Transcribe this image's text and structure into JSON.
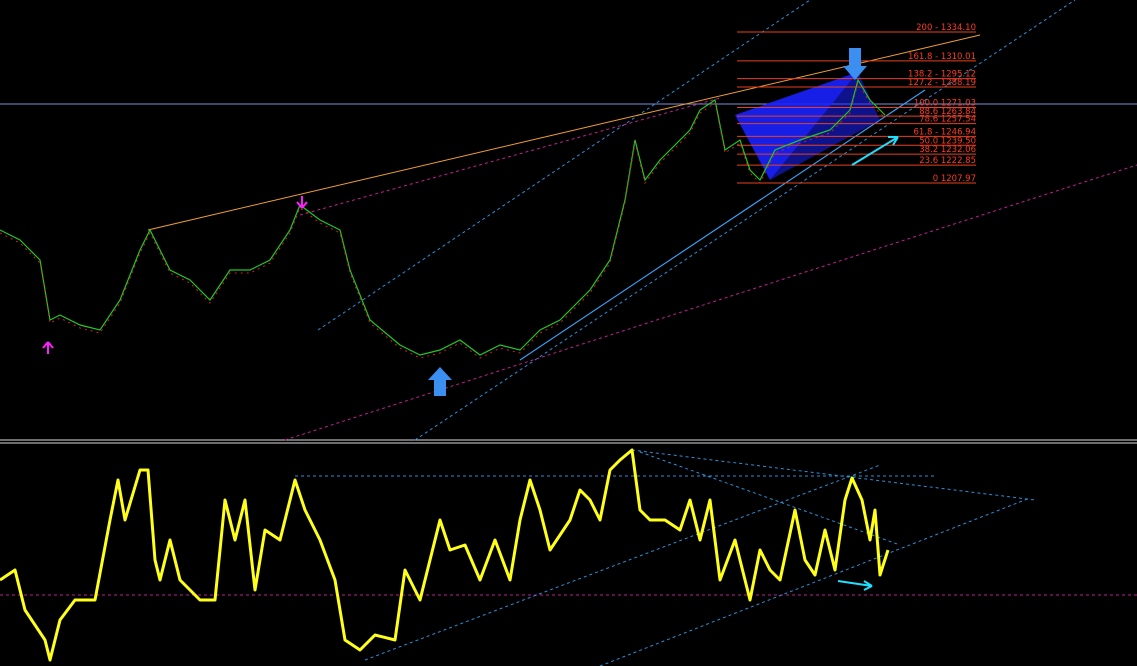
{
  "fib_levels": [
    {
      "label": "200 - 1334.10",
      "price": 1334.1
    },
    {
      "label": "161.8 - 1310.01",
      "price": 1310.01
    },
    {
      "label": "138.2 - 1295.12",
      "price": 1295.12
    },
    {
      "label": "127.2 - 1288.19",
      "price": 1288.19
    },
    {
      "label": "100.0 1271.03",
      "price": 1271.03
    },
    {
      "label": "88.6 1263.84",
      "price": 1263.84
    },
    {
      "label": "78.6 1257.54",
      "price": 1257.54
    },
    {
      "label": "61.8 - 1246.94",
      "price": 1246.94
    },
    {
      "label": "50.0 1239.50",
      "price": 1239.5
    },
    {
      "label": "38.2 1232.06",
      "price": 1232.06
    },
    {
      "label": "23.6 1222.85",
      "price": 1222.85
    },
    {
      "label": "0 1207.97",
      "price": 1207.97
    }
  ]
}
